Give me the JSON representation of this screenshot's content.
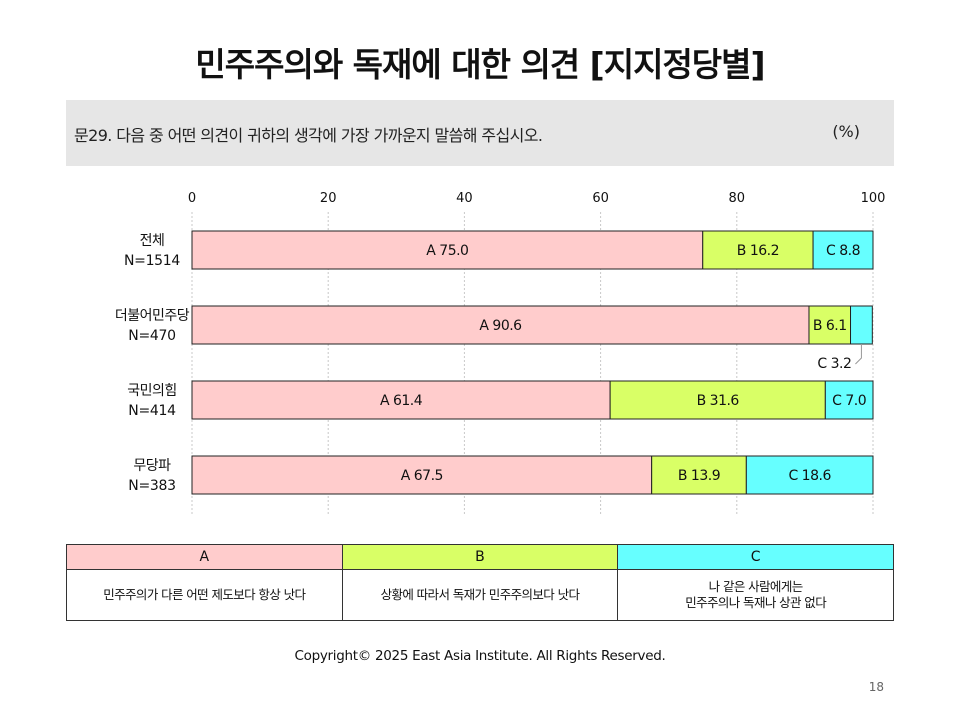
{
  "page": {
    "title": "민주주의와 독재에 대한 의견 [지지정당별]",
    "question": "문29. 다음 중 어떤 의견이 귀하의 생각에 가장 가까운지 말씀해 주십시오.",
    "unit": "(%)",
    "copyright": "Copyright© 2025 East Asia Institute. All Rights Reserved.",
    "page_number": "18"
  },
  "chart_data": {
    "type": "bar",
    "orientation": "horizontal",
    "stacked": true,
    "xlim": [
      0,
      100
    ],
    "x_ticks": [
      "0",
      "20",
      "40",
      "60",
      "80",
      "100"
    ],
    "grid": true,
    "categories": [
      {
        "name": "전체",
        "n": "N=1514"
      },
      {
        "name": "더불어민주당",
        "n": "N=470"
      },
      {
        "name": "국민의힘",
        "n": "N=414"
      },
      {
        "name": "무당파",
        "n": "N=383"
      }
    ],
    "series": [
      {
        "name": "A",
        "color": "#ffcccc",
        "values": [
          75.0,
          90.6,
          61.4,
          67.5
        ],
        "labels": [
          "A 75.0",
          "A 90.6",
          "A 61.4",
          "A 67.5"
        ]
      },
      {
        "name": "B",
        "color": "#d9ff66",
        "values": [
          16.2,
          6.1,
          31.6,
          13.9
        ],
        "labels": [
          "B 16.2",
          "B 6.1",
          "B 31.6",
          "B 13.9"
        ]
      },
      {
        "name": "C",
        "color": "#66ffff",
        "values": [
          8.8,
          3.2,
          7.0,
          18.6
        ],
        "labels": [
          "C 8.8",
          "C 3.2",
          "C 7.0",
          "C 18.6"
        ]
      }
    ],
    "callout_labels": [
      null,
      "C 3.2",
      null,
      null
    ]
  },
  "legend": {
    "headers": [
      "A",
      "B",
      "C"
    ],
    "header_colors": [
      "#ffcccc",
      "#d9ff66",
      "#66ffff"
    ],
    "descriptions": [
      "민주주의가 다른 어떤 제도보다 항상 낫다",
      "상황에 따라서 독재가 민주주의보다 낫다",
      "나 같은 사람에게는\n민주주의나 독재나 상관 없다"
    ]
  }
}
